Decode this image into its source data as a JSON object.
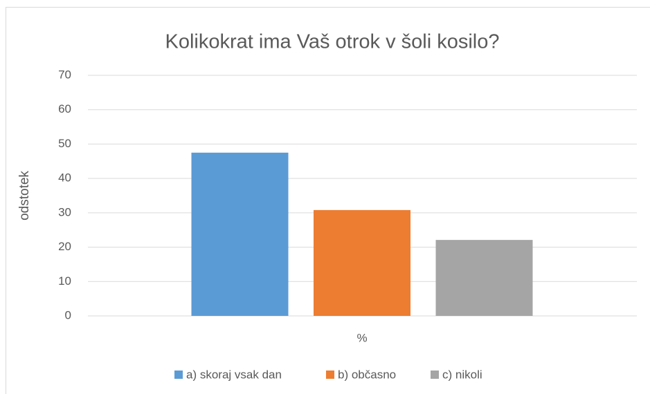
{
  "chart_data": {
    "type": "bar",
    "title": "Kolikokrat ima Vaš otrok v šoli kosilo?",
    "y_label": "odstotek",
    "categories": [
      "%"
    ],
    "series": [
      {
        "name": "a) skoraj vsak dan",
        "color": "#5b9bd5",
        "values": [
          47.5
        ]
      },
      {
        "name": "b) občasno",
        "color": "#ed7d31",
        "values": [
          30.8
        ]
      },
      {
        "name": "c) nikoli",
        "color": "#a5a5a5",
        "values": [
          22.1
        ]
      }
    ],
    "ylim": [
      0,
      70
    ],
    "yticks": [
      0,
      10,
      20,
      30,
      40,
      50,
      60,
      70
    ],
    "grid": true,
    "legend": "bottom"
  }
}
